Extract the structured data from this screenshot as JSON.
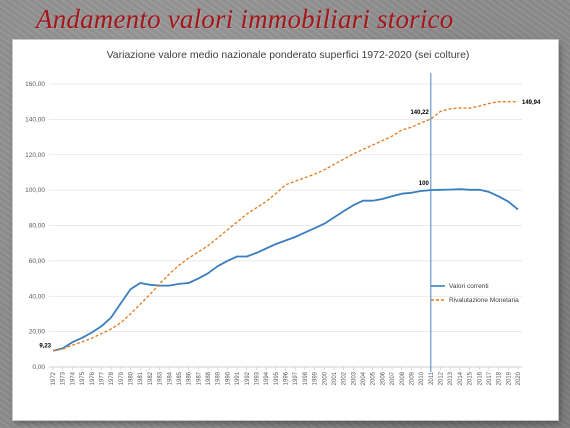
{
  "slide": {
    "title": "Andamento valori immobiliari storico"
  },
  "chart_data": {
    "type": "line",
    "title": "Variazione valore medio nazionale ponderato superfici 1972-2020 (sei colture)",
    "xlabel": "",
    "ylabel": "",
    "ylim": [
      0,
      160
    ],
    "yticks": [
      "0,00",
      "20,00",
      "40,00",
      "60,00",
      "80,00",
      "100,00",
      "120,00",
      "140,00",
      "160,00"
    ],
    "grid": "horizontal",
    "legend_position": "right",
    "x": [
      "1972",
      "1973",
      "1974",
      "1975",
      "1976",
      "1977",
      "1978",
      "1979",
      "1980",
      "1981",
      "1982",
      "1983",
      "1984",
      "1985",
      "1986",
      "1987",
      "1988",
      "1989",
      "1990",
      "1991",
      "1992",
      "1993",
      "1994",
      "1995",
      "1996",
      "1997",
      "1998",
      "1999",
      "2000",
      "2001",
      "2002",
      "2003",
      "2004",
      "2005",
      "2006",
      "2007",
      "2008",
      "2009",
      "2010",
      "2011",
      "2012",
      "2013",
      "2014",
      "2015",
      "2016",
      "2017",
      "2018",
      "2019",
      "2020"
    ],
    "series": [
      {
        "name": "Valori correnti",
        "color": "#3a7ebf",
        "style": "solid",
        "values": [
          9.23,
          10.5,
          14,
          16.5,
          19.5,
          23,
          28,
          36,
          44,
          47.5,
          46.5,
          46,
          46,
          47,
          47.5,
          50,
          53,
          57,
          60,
          62.5,
          62.5,
          64.5,
          67,
          69.5,
          71.5,
          73.5,
          76,
          78.5,
          81,
          84.5,
          88,
          91.5,
          94,
          94,
          95,
          96.5,
          98,
          98.5,
          99.5,
          100,
          100.2,
          100.3,
          100.5,
          100.2,
          100.2,
          99,
          96.5,
          93.5,
          89
        ]
      },
      {
        "name": "Rivalutazione Monetaria",
        "color": "#e07b1f",
        "style": "dashed",
        "values": [
          9.23,
          10.2,
          12.3,
          14.2,
          16.3,
          18.8,
          21.5,
          25,
          30,
          35.5,
          41,
          47,
          52.5,
          57.5,
          61.5,
          65,
          68.5,
          73,
          77.5,
          82,
          86.5,
          90,
          93.5,
          98,
          103,
          105,
          107,
          109,
          111.5,
          114.5,
          117.5,
          120.5,
          123,
          125.5,
          128,
          130.5,
          134,
          135.5,
          138,
          140.22,
          144.5,
          146,
          146.5,
          146.3,
          147.5,
          149,
          150,
          150,
          149.94
        ]
      }
    ],
    "annotations": [
      {
        "text": "9,23",
        "x": "1972",
        "y": 9.23
      },
      {
        "text": "100",
        "x": "2011",
        "y": 100
      },
      {
        "text": "140,22",
        "x": "2011",
        "y": 140.22
      },
      {
        "text": "149,94",
        "x": "2020",
        "y": 149.94
      }
    ],
    "reference_line_x": "2011"
  }
}
